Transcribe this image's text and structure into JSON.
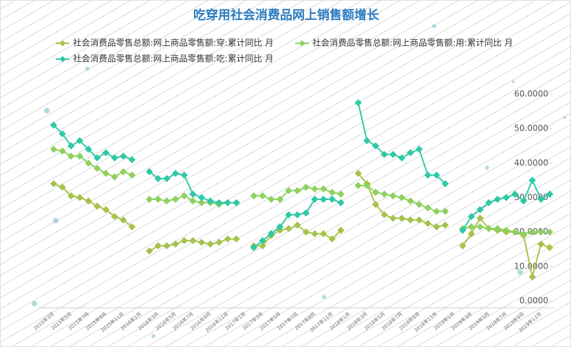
{
  "chart_data": {
    "type": "line",
    "title": "吃穿用社会消费品网上销售额增长",
    "categories": [
      "2015年3月",
      null,
      "2015年5月",
      null,
      "2015年7月",
      null,
      "2015年9月",
      null,
      "2015年11月",
      null,
      "2016年1月",
      null,
      "2016年3月",
      null,
      "2016年5月",
      null,
      "2016年7月",
      null,
      "2016年9月",
      null,
      "2016年11月",
      null,
      "2017年1月",
      null,
      "2017年3月",
      null,
      "2017年5月",
      null,
      "2017年7月",
      null,
      "2017年9月",
      null,
      "2017年11月",
      null,
      "2018年1月",
      null,
      "2018年3月",
      null,
      "2018年5月",
      null,
      "2018年7月",
      null,
      "2018年9月",
      null,
      "2018年11月",
      null,
      "2019年1月",
      null,
      "2019年3月",
      null,
      "2019年5月",
      null,
      "2019年7月",
      null,
      "2019年9月",
      null,
      "2019年11月",
      null
    ],
    "series": [
      {
        "name": "社会消费品零售总额:网上商品零售额:穿:累计同比 月",
        "color": "#a5c24a",
        "values": [
          34,
          33,
          30.5,
          30,
          29,
          27.5,
          26.5,
          24.5,
          23.5,
          21.5,
          null,
          14.5,
          16,
          16,
          16.5,
          17.5,
          17.5,
          17,
          16.5,
          17,
          18,
          18,
          null,
          16,
          16,
          19,
          20.5,
          21,
          22,
          20,
          19.5,
          19.5,
          18,
          20.5,
          null,
          37,
          34,
          28,
          25,
          24,
          24,
          23.5,
          23.5,
          22.5,
          21.5,
          22,
          null,
          16,
          19.5,
          24,
          21,
          20.5,
          20,
          20,
          19,
          7,
          16.5,
          15.5
        ]
      },
      {
        "name": "社会消费品零售总额:网上商品零售额:用:累计同比 月",
        "color": "#8ed15e",
        "values": [
          44,
          43.5,
          42,
          42,
          40,
          38.5,
          37,
          36,
          37.5,
          36.5,
          null,
          29.5,
          29.5,
          29,
          29.5,
          30.5,
          29,
          28.5,
          28.5,
          28,
          28.5,
          28.5,
          null,
          30.5,
          30.5,
          29.5,
          29.5,
          32,
          32,
          33,
          32.5,
          32.5,
          31.5,
          31,
          null,
          33.5,
          33.5,
          31.5,
          31,
          30.5,
          30,
          29,
          28,
          27,
          26,
          26,
          null,
          21,
          21.5,
          21.5,
          21,
          21,
          20.5,
          20,
          19.5,
          20,
          20,
          20
        ]
      },
      {
        "name": "社会消费品零售总额:网上商品零售额:吃:累计同比 月",
        "color": "#2ec9a6",
        "values": [
          51,
          48.5,
          45,
          46.5,
          44,
          41.5,
          43,
          41.5,
          42,
          41,
          null,
          37.5,
          35.5,
          35.5,
          37,
          36.5,
          31,
          30,
          29,
          28.5,
          28.5,
          28.5,
          null,
          15.5,
          17.5,
          19.5,
          21.5,
          25,
          25,
          25.5,
          29.5,
          29.5,
          29.5,
          28.5,
          null,
          57.5,
          46.5,
          45,
          42.5,
          42.5,
          41.5,
          43,
          44,
          36.5,
          36.5,
          34,
          null,
          20.5,
          24.5,
          26.5,
          28.5,
          29.5,
          30,
          31,
          29,
          35,
          29.5,
          31
        ]
      }
    ],
    "ylim": [
      0,
      60
    ],
    "yticks": [
      {
        "value": 0,
        "label": "0.0000"
      },
      {
        "value": 10,
        "label": "10.0000"
      },
      {
        "value": 20,
        "label": "20.0000"
      },
      {
        "value": 30,
        "label": "30.0000"
      },
      {
        "value": 40,
        "label": "40.0000"
      },
      {
        "value": 50,
        "label": "50.0000"
      },
      {
        "value": 60,
        "label": "60.0000"
      }
    ]
  }
}
